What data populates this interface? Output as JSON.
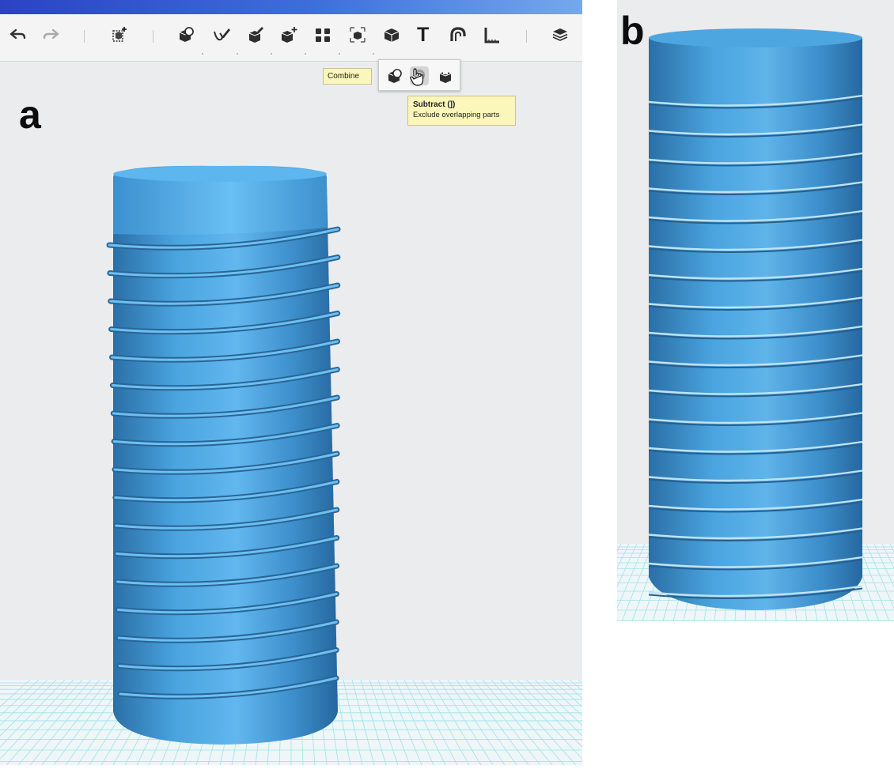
{
  "panels": {
    "a": {
      "letter": "a"
    },
    "b": {
      "letter": "b"
    }
  },
  "toolbar": {
    "undo_icon": "undo-arrow-icon",
    "redo_icon": "redo-arrow-icon",
    "text_tool_label": "T",
    "tools": [
      "add-shape-icon",
      "group-icon",
      "pen-sketch-icon",
      "paint-icon",
      "move-icon",
      "align-icon",
      "scale-icon",
      "combine-cube-icon",
      "text-icon",
      "magnet-icon",
      "ruler-icon",
      "layers-icon"
    ]
  },
  "popup": {
    "buttons": [
      "combine-icon",
      "subtract-icon",
      "intersect-icon"
    ]
  },
  "tooltips": {
    "combine": "Combine",
    "subtract_title": "Subtract (])",
    "subtract_desc": "Exclude overlapping parts"
  },
  "colors": {
    "shape_blue": "#3f8fc9",
    "canvas_bg": "#ebeced",
    "grid_line": "#9ee3ea",
    "tooltip_bg": "#fbf6b9",
    "titlebar_blue": "#3f6fdc"
  }
}
